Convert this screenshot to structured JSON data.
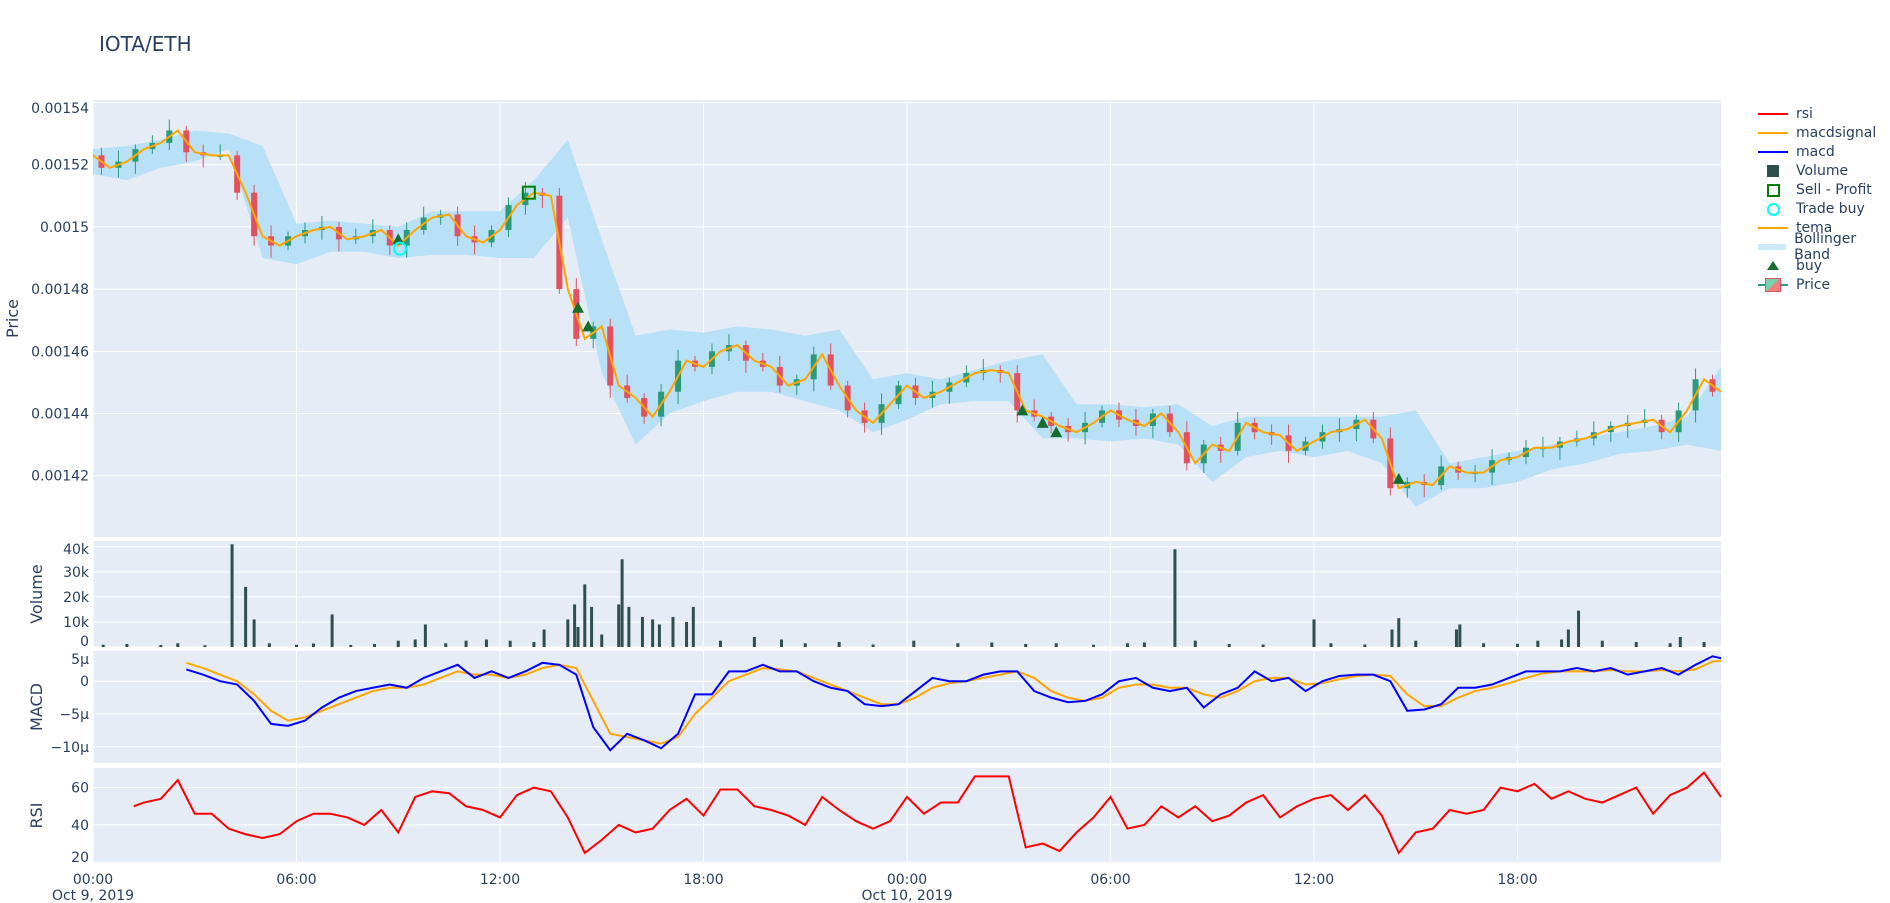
{
  "title": "IOTA/ETH",
  "legend": [
    "rsi",
    "macdsignal",
    "macd",
    "Volume",
    "Sell - Profit",
    "Trade buy",
    "tema",
    "Bollinger Band",
    "buy",
    "Price"
  ],
  "colors": {
    "rsi": "#ff0000",
    "macdsignal": "#ffa500",
    "macd": "#0000ff",
    "volume": "#2f4f4f",
    "sell": "#008000",
    "trade_buy": "#00ffff",
    "tema": "#ffa500",
    "bollinger": "#b8e0f6",
    "buy": "#166e2e",
    "up": "#2b9a7a",
    "down": "#e05260",
    "plot_bg": "#e5ecf6"
  },
  "chart_data": [
    {
      "type": "candlestick",
      "ylabel": "Price",
      "ylim": [
        0.0014003,
        0.0015408
      ],
      "yticks": [
        "0.00154",
        "0.00152",
        "0.0015",
        "0.00148",
        "0.00146",
        "0.00144",
        "0.00142"
      ],
      "ytick_values": [
        0.00154,
        0.00152,
        0.0015,
        0.00148,
        0.00146,
        0.00144,
        0.00142
      ],
      "x_hours_step": 0.5,
      "close_e5": [
        152.3,
        151.9,
        152.1,
        152.5,
        152.7,
        153.1,
        152.4,
        152.3,
        152.3,
        151.1,
        149.7,
        149.4,
        149.7,
        149.9,
        150.0,
        149.6,
        149.7,
        149.9,
        149.4,
        149.9,
        150.3,
        150.4,
        149.7,
        149.5,
        149.9,
        150.7,
        151.1,
        151.0,
        148.0,
        146.4,
        146.8,
        144.9,
        144.5,
        143.9,
        144.7,
        145.7,
        145.5,
        146.0,
        146.2,
        145.7,
        145.5,
        144.9,
        145.1,
        145.9,
        144.9,
        144.1,
        143.7,
        144.3,
        144.9,
        144.5,
        144.7,
        145.0,
        145.3,
        145.4,
        145.3,
        144.1,
        143.9,
        143.6,
        143.4,
        143.7,
        144.1,
        143.8,
        143.6,
        144.0,
        143.4,
        142.4,
        143.0,
        142.8,
        143.7,
        143.4,
        143.3,
        142.8,
        143.1,
        143.4,
        143.5,
        143.8,
        143.2,
        141.6,
        141.8,
        141.7,
        142.3,
        142.1,
        142.1,
        142.5,
        142.6,
        142.9,
        142.9,
        143.1,
        143.2,
        143.4,
        143.6,
        143.7,
        143.8,
        143.4,
        144.1,
        145.1,
        144.7
      ],
      "bollinger_hours_step": 1,
      "bb_upper_e5": [
        152.5,
        152.6,
        152.8,
        153.1,
        153.0,
        152.6,
        150.1,
        150.2,
        150.1,
        150.0,
        150.5,
        150.5,
        150.5,
        151.5,
        152.8,
        149.6,
        146.5,
        146.7,
        146.6,
        146.8,
        146.7,
        146.5,
        146.7,
        145.1,
        145.3,
        145.1,
        145.4,
        145.7,
        145.9,
        144.3,
        144.3,
        144.2,
        144.3,
        143.6,
        143.9,
        143.9,
        143.9,
        143.9,
        143.9,
        144.1,
        142.4,
        142.6,
        142.8,
        143.0,
        143.2,
        143.4,
        143.6,
        143.9,
        145.5
      ],
      "bb_lower_e5": [
        151.7,
        151.5,
        151.9,
        152.1,
        152.5,
        149.0,
        148.8,
        149.2,
        149.2,
        149.0,
        149.1,
        149.1,
        149.0,
        149.0,
        150.3,
        145.3,
        143.0,
        144.0,
        144.4,
        144.7,
        144.7,
        144.4,
        144.1,
        143.4,
        143.8,
        144.3,
        144.4,
        144.4,
        143.2,
        143.2,
        143.1,
        143.2,
        143.0,
        141.8,
        142.6,
        142.8,
        142.6,
        142.8,
        142.4,
        141.0,
        141.6,
        141.6,
        141.8,
        142.2,
        142.4,
        142.7,
        142.8,
        143.0,
        142.8
      ],
      "buy_markers": [
        [
          9.0,
          149.6
        ],
        [
          14.3,
          147.4
        ],
        [
          14.6,
          146.8
        ],
        [
          27.4,
          144.1
        ],
        [
          28.0,
          143.7
        ],
        [
          28.4,
          143.4
        ],
        [
          38.5,
          141.9
        ]
      ],
      "trade_buy": [
        [
          9.05,
          149.3
        ]
      ],
      "sell_profit": [
        [
          12.85,
          151.1
        ]
      ]
    },
    {
      "type": "bar",
      "ylabel": "Volume",
      "ylim": [
        0,
        42300
      ],
      "yticks": [
        "0",
        "10k",
        "20k",
        "30k",
        "40k"
      ],
      "ytick_values": [
        0,
        10000,
        20000,
        30000,
        40000
      ],
      "bars": [
        [
          0.3,
          900
        ],
        [
          1.0,
          1200
        ],
        [
          2.0,
          800
        ],
        [
          2.5,
          1500
        ],
        [
          3.3,
          700
        ],
        [
          4.1,
          41000
        ],
        [
          4.5,
          24000
        ],
        [
          4.75,
          11000
        ],
        [
          5.2,
          1500
        ],
        [
          6.0,
          900
        ],
        [
          6.5,
          1400
        ],
        [
          7.05,
          13000
        ],
        [
          7.6,
          800
        ],
        [
          8.3,
          1200
        ],
        [
          9.0,
          2500
        ],
        [
          9.5,
          3000
        ],
        [
          9.8,
          9000
        ],
        [
          10.4,
          1500
        ],
        [
          11.0,
          2500
        ],
        [
          11.6,
          3000
        ],
        [
          12.3,
          2500
        ],
        [
          13.0,
          2000
        ],
        [
          13.3,
          7000
        ],
        [
          14.0,
          11000
        ],
        [
          14.2,
          17000
        ],
        [
          14.3,
          8000
        ],
        [
          14.5,
          25000
        ],
        [
          14.7,
          16000
        ],
        [
          15.0,
          5000
        ],
        [
          15.5,
          17000
        ],
        [
          15.6,
          35000
        ],
        [
          15.8,
          16000
        ],
        [
          16.2,
          12000
        ],
        [
          16.5,
          11000
        ],
        [
          16.7,
          9000
        ],
        [
          17.1,
          12000
        ],
        [
          17.5,
          10000
        ],
        [
          17.7,
          16000
        ],
        [
          18.5,
          2500
        ],
        [
          19.5,
          4000
        ],
        [
          20.3,
          3000
        ],
        [
          21.0,
          1500
        ],
        [
          22.0,
          2000
        ],
        [
          23.0,
          1000
        ],
        [
          24.2,
          2500
        ],
        [
          25.5,
          1500
        ],
        [
          26.5,
          1800
        ],
        [
          27.5,
          1200
        ],
        [
          28.4,
          1500
        ],
        [
          29.5,
          900
        ],
        [
          30.5,
          1500
        ],
        [
          31.0,
          1800
        ],
        [
          31.9,
          39000
        ],
        [
          32.5,
          2500
        ],
        [
          33.5,
          1200
        ],
        [
          34.5,
          1000
        ],
        [
          36.0,
          11000
        ],
        [
          36.5,
          1500
        ],
        [
          37.5,
          1000
        ],
        [
          38.3,
          7000
        ],
        [
          38.5,
          11500
        ],
        [
          39.0,
          2500
        ],
        [
          40.2,
          7000
        ],
        [
          40.3,
          9000
        ],
        [
          41.0,
          1500
        ],
        [
          42.0,
          1300
        ],
        [
          42.6,
          2500
        ],
        [
          43.3,
          3000
        ],
        [
          43.5,
          7000
        ],
        [
          43.8,
          14500
        ],
        [
          44.5,
          2500
        ],
        [
          45.5,
          2000
        ],
        [
          46.5,
          1500
        ],
        [
          46.8,
          4000
        ],
        [
          47.5,
          2000
        ]
      ]
    },
    {
      "type": "line",
      "ylabel": "MACD",
      "ylim": [
        -1.245e-05,
        4.6e-06
      ],
      "yticks": [
        "5µ",
        "0",
        "−5µ",
        "−10µ"
      ],
      "ytick_values": [
        5e-06,
        0,
        -5e-06,
        -1e-05
      ],
      "x_start_hours": 2.75,
      "x_hours_step": 0.5,
      "series": [
        {
          "name": "macd",
          "values_micro": [
            1.8,
            1,
            0,
            -0.5,
            -3,
            -6.5,
            -6.8,
            -6,
            -4,
            -2.5,
            -1.5,
            -1,
            -0.5,
            -1,
            0.5,
            1.5,
            2.5,
            0.5,
            1.5,
            0.5,
            1.5,
            2.8,
            2.5,
            1.0,
            -7,
            -10.5,
            -8,
            -9,
            -10.2,
            -8,
            -2,
            -2,
            1.5,
            1.5,
            2.5,
            1.5,
            1.5,
            0,
            -1,
            -1.5,
            -3.5,
            -3.8,
            -3.5,
            -1.5,
            0.5,
            0,
            0,
            1,
            1.5,
            1.5,
            -1.5,
            -2.5,
            -3.2,
            -3,
            -2,
            0,
            0.5,
            -1,
            -1.5,
            -1,
            -4,
            -2,
            -1,
            1.5,
            0,
            0.5,
            -1.5,
            0,
            0.8,
            1,
            1,
            0,
            -4.5,
            -4.3,
            -3.5,
            -1,
            -1,
            -0.5,
            0.5,
            1.5,
            1.5,
            1.5,
            2,
            1.5,
            2,
            1,
            1.5,
            2,
            1,
            2.5,
            3.8,
            3.2
          ]
        },
        {
          "name": "macdsignal",
          "values_micro": [
            2.8,
            2,
            1,
            0,
            -2,
            -4.5,
            -6,
            -5.5,
            -4.5,
            -3.5,
            -2.5,
            -1.5,
            -1,
            -1,
            -0.5,
            0.5,
            1.5,
            1,
            1,
            0.5,
            1,
            2,
            2.5,
            2,
            -3,
            -8,
            -8.5,
            -9,
            -9.5,
            -8.5,
            -5,
            -2.5,
            0,
            1,
            2,
            1.8,
            1.5,
            0.5,
            -0.5,
            -1.5,
            -2.5,
            -3.5,
            -3.5,
            -2.5,
            -1,
            -0.3,
            0,
            0.5,
            1,
            1.5,
            0.5,
            -1.5,
            -2.5,
            -3,
            -2.5,
            -1,
            -0.5,
            -0.5,
            -1,
            -1,
            -2,
            -2.5,
            -1.5,
            0,
            0.5,
            0.5,
            -0.5,
            -0.3,
            0.3,
            0.8,
            1,
            0.8,
            -2,
            -3.8,
            -3.8,
            -2.5,
            -1.5,
            -1,
            -0.3,
            0.5,
            1.2,
            1.5,
            1.5,
            1.5,
            1.7,
            1.5,
            1.5,
            1.7,
            1.5,
            1.8,
            3,
            3.2
          ]
        }
      ]
    },
    {
      "type": "line",
      "ylabel": "RSI",
      "ylim": [
        19.6,
        70.5
      ],
      "yticks": [
        "20",
        "40",
        "60"
      ],
      "ytick_values": [
        20,
        40,
        60
      ],
      "x_start_hours": 1.2,
      "series": [
        {
          "name": "rsi",
          "x_hours": [
            1.2,
            1.5,
            2,
            2.5,
            3,
            3.5,
            4,
            4.5,
            5,
            5.5,
            6,
            6.5,
            7,
            7.5,
            8,
            8.5,
            9,
            9.5,
            10,
            10.5,
            11,
            11.5,
            12,
            12.5,
            13,
            13.5,
            14,
            14.5,
            15,
            15.5,
            16,
            16.5,
            17,
            17.5,
            18,
            18.5,
            19,
            19.5,
            20,
            20.5,
            21,
            21.5,
            22,
            22.5,
            23,
            23.5,
            24,
            24.5,
            25,
            25.5,
            26,
            26.5,
            27,
            27.5,
            28,
            28.5,
            29,
            29.5,
            30,
            30.5,
            31,
            31.5,
            32,
            32.5,
            33,
            33.5,
            34,
            34.5,
            35,
            35.5,
            36,
            36.5,
            37,
            37.5,
            38,
            38.5,
            39,
            39.5,
            40,
            40.5,
            41,
            41.5,
            42,
            42.5,
            43,
            43.5,
            44,
            44.5,
            45,
            45.5,
            46,
            46.5,
            47,
            47.5,
            48
          ],
          "values": [
            50,
            52,
            54,
            64,
            46,
            46,
            38,
            35,
            33,
            35,
            42,
            46,
            46,
            44,
            40,
            48,
            36,
            55,
            58,
            57,
            50,
            48,
            44,
            56,
            60,
            58,
            44,
            25,
            32,
            40,
            36,
            38,
            48,
            54,
            45,
            59,
            59,
            50,
            48,
            45,
            40,
            55,
            48,
            42,
            38,
            42,
            55,
            46,
            52,
            52,
            66,
            66,
            66,
            28,
            30,
            26,
            36,
            44,
            55,
            38,
            40,
            50,
            44,
            50,
            42,
            45,
            52,
            56,
            44,
            50,
            54,
            56,
            48,
            56,
            45,
            25,
            36,
            38,
            48,
            46,
            48,
            60,
            58,
            62,
            54,
            58,
            54,
            52,
            56,
            60,
            46,
            56,
            60,
            68,
            55
          ]
        }
      ]
    }
  ],
  "xaxis": {
    "range_hours": [
      0,
      48
    ],
    "ticks": [
      {
        "h": 0,
        "label": "00:00",
        "sub": "Oct 9, 2019"
      },
      {
        "h": 6,
        "label": "06:00",
        "sub": ""
      },
      {
        "h": 12,
        "label": "12:00",
        "sub": ""
      },
      {
        "h": 18,
        "label": "18:00",
        "sub": ""
      },
      {
        "h": 24,
        "label": "00:00",
        "sub": "Oct 10, 2019"
      },
      {
        "h": 30,
        "label": "06:00",
        "sub": ""
      },
      {
        "h": 36,
        "label": "12:00",
        "sub": ""
      },
      {
        "h": 42,
        "label": "18:00",
        "sub": ""
      }
    ]
  }
}
